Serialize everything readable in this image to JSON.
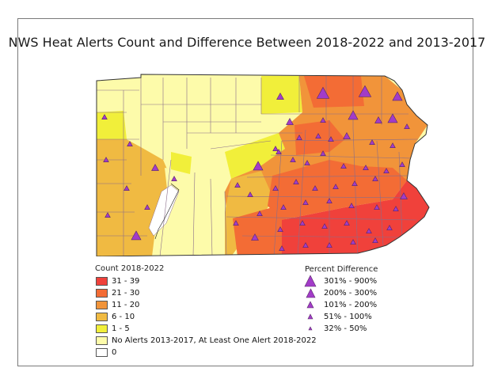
{
  "title": "NWS Heat Alerts Count and Difference Between 2018-2022 and 2013-2017",
  "count_legend": {
    "title": "Count 2018-2022",
    "items": [
      {
        "label": "31 - 39",
        "color": "#f0413b"
      },
      {
        "label": "21 - 30",
        "color": "#f36c35"
      },
      {
        "label": "11 - 20",
        "color": "#f1943a"
      },
      {
        "label": "6 - 10",
        "color": "#f0ba42"
      },
      {
        "label": "1 - 5",
        "color": "#f1ef3a"
      },
      {
        "label": "No Alerts 2013-2017, At Least One Alert 2018-2022",
        "color": "#fdfbaa"
      },
      {
        "label": "0",
        "color": "#ffffff"
      }
    ]
  },
  "percent_legend": {
    "title": "Percent Difference",
    "symbol_color": "#a23cc8",
    "items": [
      {
        "label": "301% - 900%",
        "size": 5
      },
      {
        "label": "200% - 300%",
        "size": 4
      },
      {
        "label": "101% - 200%",
        "size": 3
      },
      {
        "label": "51% - 100%",
        "size": 2
      },
      {
        "label": "32% - 50%",
        "size": 1
      }
    ]
  },
  "map": {
    "state_outline": "Pennsylvania",
    "border_color": "#6b4a6b",
    "river_color": "#1a1a1a"
  }
}
